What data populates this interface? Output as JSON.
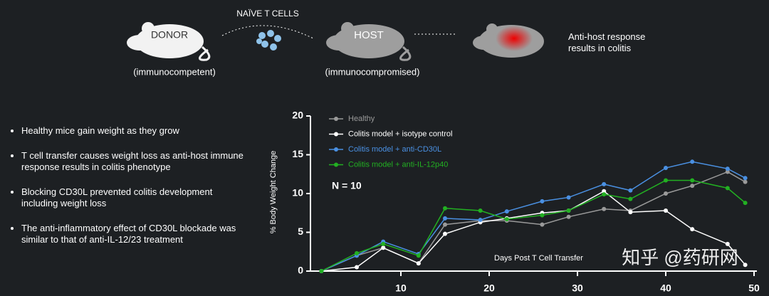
{
  "diagram": {
    "transfer_label": "NAÏVE T CELLS",
    "donor": "DONOR",
    "donor_note": "(immunocompetent)",
    "host": "HOST",
    "host_note": "(immunocompromised)",
    "outcome": "Anti-host response results in colitis"
  },
  "bullets": [
    "Healthy mice gain weight as they grow",
    "T cell transfer causes weight loss as anti-host immune response results in colitis phenotype",
    "Blocking CD30L prevented colitis development including weight loss",
    "The anti-inflammatory effect of CD30L blockade was similar to that of anti-IL-12/23 treatment"
  ],
  "watermark": "知乎 @药研网",
  "chart_data": {
    "type": "line",
    "y_label": "% Body Weight Change",
    "x_label": "Days Post T Cell Transfer",
    "annotation": "N = 10",
    "x": [
      1,
      5,
      8,
      12,
      15,
      19,
      22,
      26,
      29,
      33,
      36,
      40,
      43,
      47,
      49
    ],
    "series": [
      {
        "name": "Healthy",
        "color": "#9a9a9a",
        "values": [
          0,
          2,
          3,
          1,
          6,
          6.5,
          6.5,
          6,
          7,
          8,
          7.8,
          10,
          11,
          12.8,
          11.5
        ]
      },
      {
        "name": "Colitis model + isotype control",
        "color": "#ffffff",
        "values": [
          0,
          0.5,
          3,
          1,
          4.8,
          6.3,
          6.8,
          7.5,
          7.8,
          10.3,
          7.6,
          7.8,
          5.4,
          3.5,
          0.8
        ]
      },
      {
        "name": "Colitis model + anti-CD30L",
        "color": "#4a90e2",
        "values": [
          0,
          2,
          3.8,
          2.2,
          6.8,
          6.6,
          7.7,
          9,
          9.5,
          11.2,
          10.4,
          13.3,
          14.1,
          13.2,
          12
        ]
      },
      {
        "name": "Colitis model + anti-IL-12p40",
        "color": "#22b022",
        "values": [
          0,
          2.3,
          3.5,
          2,
          8.1,
          7.8,
          6.7,
          7.2,
          7.8,
          9.9,
          9.3,
          11.7,
          11.7,
          10.7,
          8.8
        ]
      }
    ],
    "xlim": [
      0,
      50
    ],
    "xticks": [
      10,
      20,
      30,
      40,
      50
    ],
    "ylim": [
      0,
      20
    ],
    "yticks": [
      0,
      5,
      10,
      15,
      20
    ]
  }
}
